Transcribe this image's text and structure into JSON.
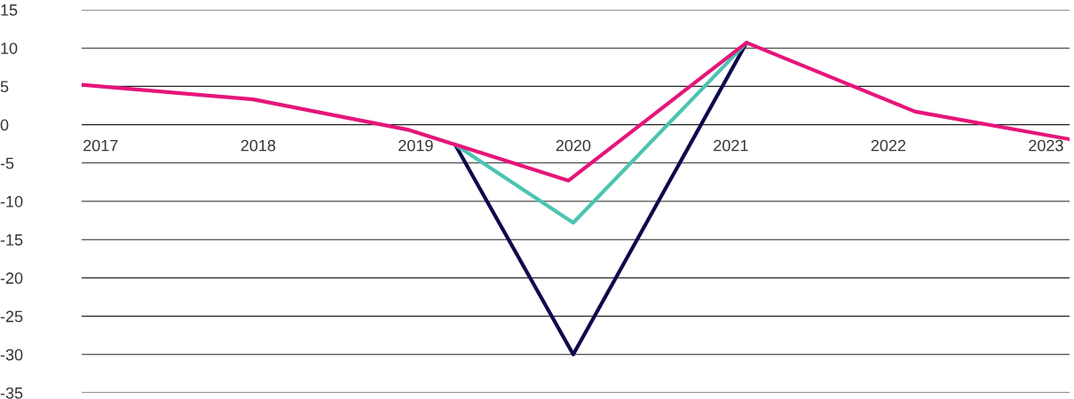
{
  "chart_data": {
    "type": "line",
    "xlim": [
      2016.88,
      2023.15
    ],
    "xticks": [
      2017,
      2018,
      2019,
      2020,
      2021,
      2022,
      2023
    ],
    "ylim": [
      -35,
      15
    ],
    "yticks": [
      -35,
      -30,
      -25,
      -20,
      -15,
      -10,
      -5,
      0,
      5,
      10,
      15
    ],
    "grid": "y",
    "legend": false,
    "marker": "none",
    "line_style": "solid",
    "series": [
      {
        "color": "#0d0a4a",
        "x": [
          2019.25,
          2020.0,
          2021.1
        ],
        "values": [
          -2.6,
          -30,
          10.7
        ]
      },
      {
        "color": "#4cc4b0",
        "x": [
          2019.25,
          2020.0,
          2021.1
        ],
        "values": [
          -2.6,
          -12.8,
          10.7
        ]
      },
      {
        "color": "#e6157a",
        "x": [
          2016.88,
          2017.97,
          2018.96,
          2019.25,
          2019.97,
          2021.1,
          2022.17,
          2023.15
        ],
        "values": [
          5.2,
          3.3,
          -0.7,
          -2.6,
          -7.3,
          10.7,
          1.7,
          -1.9
        ]
      }
    ]
  }
}
